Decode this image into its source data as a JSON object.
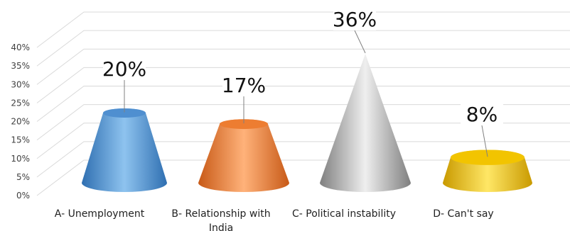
{
  "chart_data": {
    "type": "bar",
    "shape": "3d-cone",
    "categories": [
      "A- Unemployment",
      "B- Relationship with India",
      "C- Political instability",
      "D- Can't say"
    ],
    "values": [
      20,
      17,
      36,
      8
    ],
    "data_labels": [
      "20%",
      "17%",
      "36%",
      "8%"
    ],
    "y_ticks": [
      "0%",
      "5%",
      "10%",
      "15%",
      "20%",
      "25%",
      "30%",
      "35%",
      "40%"
    ],
    "ylim": [
      0,
      40
    ],
    "grid": true,
    "legend": "none",
    "colors": [
      "#4f8fd0",
      "#ed7d31",
      "#a5a5a5",
      "#f2c400"
    ]
  }
}
